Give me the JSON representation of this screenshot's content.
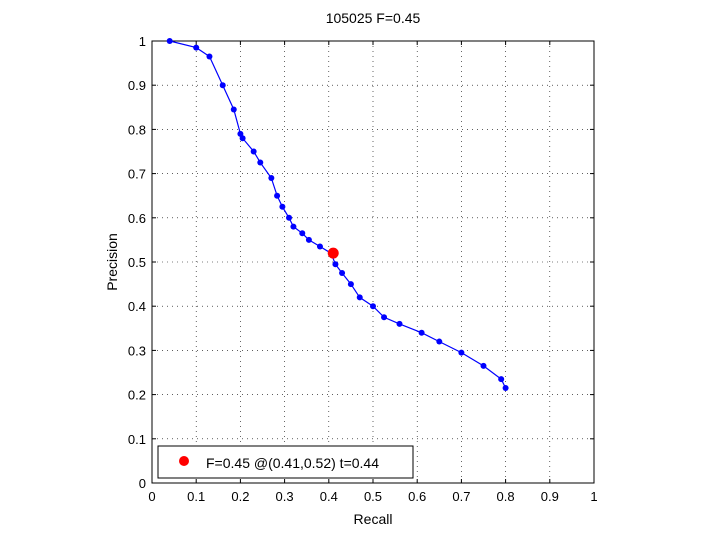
{
  "chart_data": {
    "type": "line",
    "title": "105025 F=0.45",
    "xlabel": "Recall",
    "ylabel": "Precision",
    "xlim": [
      0,
      1
    ],
    "ylim": [
      0,
      1
    ],
    "xticks": [
      "0",
      "0.1",
      "0.2",
      "0.3",
      "0.4",
      "0.5",
      "0.6",
      "0.7",
      "0.8",
      "0.9",
      "1"
    ],
    "yticks": [
      "0",
      "0.1",
      "0.2",
      "0.3",
      "0.4",
      "0.5",
      "0.6",
      "0.7",
      "0.8",
      "0.9",
      "1"
    ],
    "grid": true,
    "legend_position": "bottom-left",
    "line_color": "#0000ff",
    "marker_color": "#0000ff",
    "highlight_color": "#ff0000",
    "series": [
      {
        "x": [
          0.04,
          0.1,
          0.13,
          0.16,
          0.185,
          0.2,
          0.205,
          0.23,
          0.245,
          0.27,
          0.283,
          0.295,
          0.31,
          0.32,
          0.34,
          0.355,
          0.38,
          0.405,
          0.415,
          0.43,
          0.45,
          0.47,
          0.5,
          0.525,
          0.56,
          0.61,
          0.65,
          0.7,
          0.75,
          0.79,
          0.8
        ],
        "y": [
          1.0,
          0.985,
          0.965,
          0.9,
          0.845,
          0.79,
          0.78,
          0.75,
          0.725,
          0.69,
          0.65,
          0.625,
          0.6,
          0.58,
          0.565,
          0.55,
          0.535,
          0.52,
          0.495,
          0.475,
          0.45,
          0.42,
          0.4,
          0.375,
          0.36,
          0.34,
          0.32,
          0.295,
          0.265,
          0.235,
          0.215
        ]
      }
    ],
    "highlight": {
      "x": 0.41,
      "y": 0.52
    },
    "legend": {
      "label": "F=0.45 @(0.41,0.52) t=0.44"
    }
  }
}
